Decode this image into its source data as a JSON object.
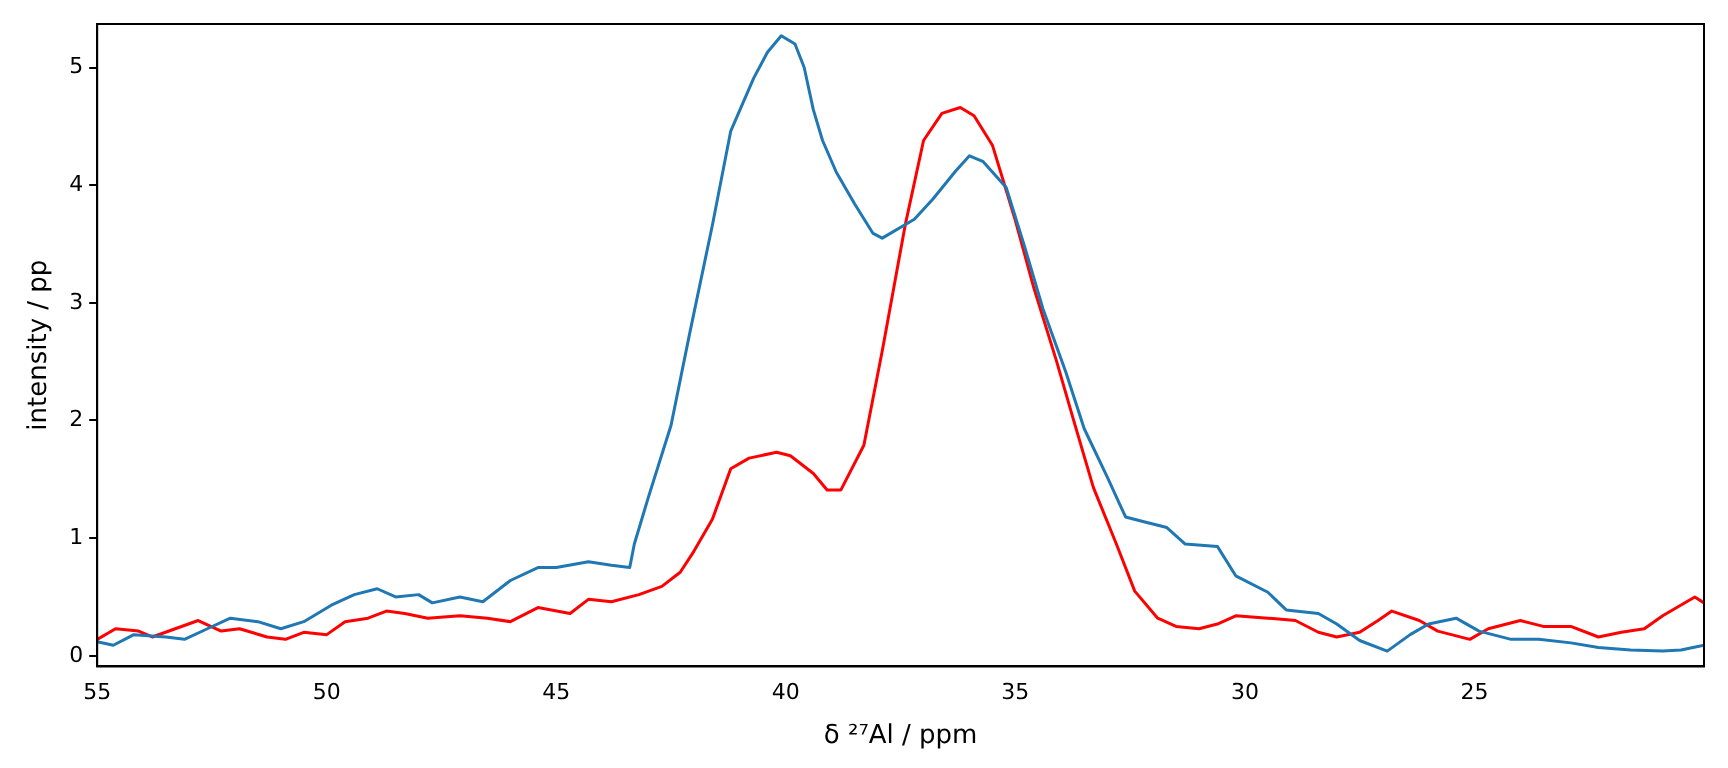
{
  "chart_data": {
    "type": "line",
    "xlabel": "δ ²⁷Al / ppm",
    "ylabel": "intensity / pp",
    "xlim": [
      55,
      20
    ],
    "ylim": [
      -0.09,
      5.37
    ],
    "xticks": [
      55,
      50,
      45,
      40,
      35,
      30,
      25
    ],
    "yticks": [
      0,
      1,
      2,
      3,
      4,
      5
    ],
    "grid": false,
    "legend": false,
    "marker": "none",
    "line_style": "solid",
    "series": [
      {
        "color": "#1f77b4",
        "x": [
          55.0,
          54.65,
          54.2,
          53.5,
          53.1,
          52.6,
          52.1,
          51.5,
          51.0,
          50.5,
          49.9,
          49.4,
          48.9,
          48.5,
          48.0,
          47.7,
          47.1,
          46.6,
          46.0,
          45.4,
          45.0,
          44.3,
          43.8,
          43.4,
          43.3,
          43.0,
          42.5,
          42.1,
          41.6,
          41.2,
          40.7,
          40.4,
          40.1,
          39.8,
          39.6,
          39.4,
          39.2,
          38.9,
          38.5,
          38.1,
          37.9,
          37.2,
          36.8,
          36.3,
          36.0,
          35.7,
          35.2,
          34.8,
          34.4,
          33.9,
          33.5,
          33.0,
          32.6,
          32.2,
          31.7,
          31.3,
          30.6,
          30.2,
          29.5,
          29.1,
          28.4,
          28.0,
          27.5,
          26.9,
          26.4,
          26.0,
          25.4,
          24.9,
          24.2,
          23.6,
          22.9,
          22.3,
          21.6,
          20.9,
          20.5,
          20.0
        ],
        "values": [
          0.12,
          0.09,
          0.18,
          0.16,
          0.14,
          0.23,
          0.32,
          0.29,
          0.23,
          0.29,
          0.43,
          0.52,
          0.57,
          0.5,
          0.52,
          0.45,
          0.5,
          0.46,
          0.64,
          0.75,
          0.75,
          0.8,
          0.77,
          0.75,
          0.95,
          1.34,
          1.96,
          2.73,
          3.66,
          4.46,
          4.91,
          5.13,
          5.27,
          5.2,
          5.0,
          4.64,
          4.38,
          4.11,
          3.84,
          3.59,
          3.55,
          3.71,
          3.88,
          4.12,
          4.25,
          4.2,
          3.98,
          3.48,
          2.95,
          2.41,
          1.93,
          1.52,
          1.18,
          1.14,
          1.09,
          0.95,
          0.93,
          0.68,
          0.54,
          0.39,
          0.36,
          0.27,
          0.13,
          0.04,
          0.18,
          0.27,
          0.32,
          0.21,
          0.14,
          0.14,
          0.11,
          0.07,
          0.05,
          0.04,
          0.05,
          0.09
        ]
      },
      {
        "color": "#ff0000",
        "x": [
          55.0,
          54.6,
          54.1,
          53.8,
          53.3,
          52.8,
          52.3,
          51.9,
          51.3,
          50.9,
          50.5,
          50.0,
          49.6,
          49.1,
          48.7,
          48.3,
          47.8,
          47.1,
          46.5,
          46.0,
          45.4,
          44.7,
          44.3,
          43.8,
          43.2,
          42.7,
          42.3,
          42.0,
          41.6,
          41.2,
          40.8,
          40.2,
          39.9,
          39.4,
          39.1,
          38.8,
          38.3,
          37.9,
          37.4,
          37.0,
          36.6,
          36.2,
          35.9,
          35.5,
          35.0,
          34.6,
          34.1,
          33.7,
          33.3,
          32.8,
          32.4,
          31.9,
          31.5,
          31.0,
          30.6,
          30.2,
          29.5,
          28.9,
          28.4,
          28.0,
          27.5,
          27.1,
          26.8,
          26.2,
          25.8,
          25.1,
          24.7,
          24.0,
          23.5,
          22.9,
          22.3,
          21.8,
          21.3,
          20.9,
          20.2,
          20.0
        ],
        "values": [
          0.14,
          0.23,
          0.21,
          0.16,
          0.23,
          0.3,
          0.21,
          0.23,
          0.16,
          0.14,
          0.2,
          0.18,
          0.29,
          0.32,
          0.38,
          0.36,
          0.32,
          0.34,
          0.32,
          0.29,
          0.41,
          0.36,
          0.48,
          0.46,
          0.52,
          0.59,
          0.71,
          0.89,
          1.16,
          1.59,
          1.68,
          1.73,
          1.7,
          1.55,
          1.41,
          1.41,
          1.79,
          2.59,
          3.66,
          4.38,
          4.61,
          4.66,
          4.59,
          4.34,
          3.7,
          3.13,
          2.5,
          1.96,
          1.43,
          0.95,
          0.55,
          0.32,
          0.25,
          0.23,
          0.27,
          0.34,
          0.32,
          0.3,
          0.2,
          0.16,
          0.2,
          0.3,
          0.38,
          0.3,
          0.21,
          0.14,
          0.23,
          0.3,
          0.25,
          0.25,
          0.16,
          0.2,
          0.23,
          0.34,
          0.5,
          0.45
        ]
      }
    ]
  }
}
